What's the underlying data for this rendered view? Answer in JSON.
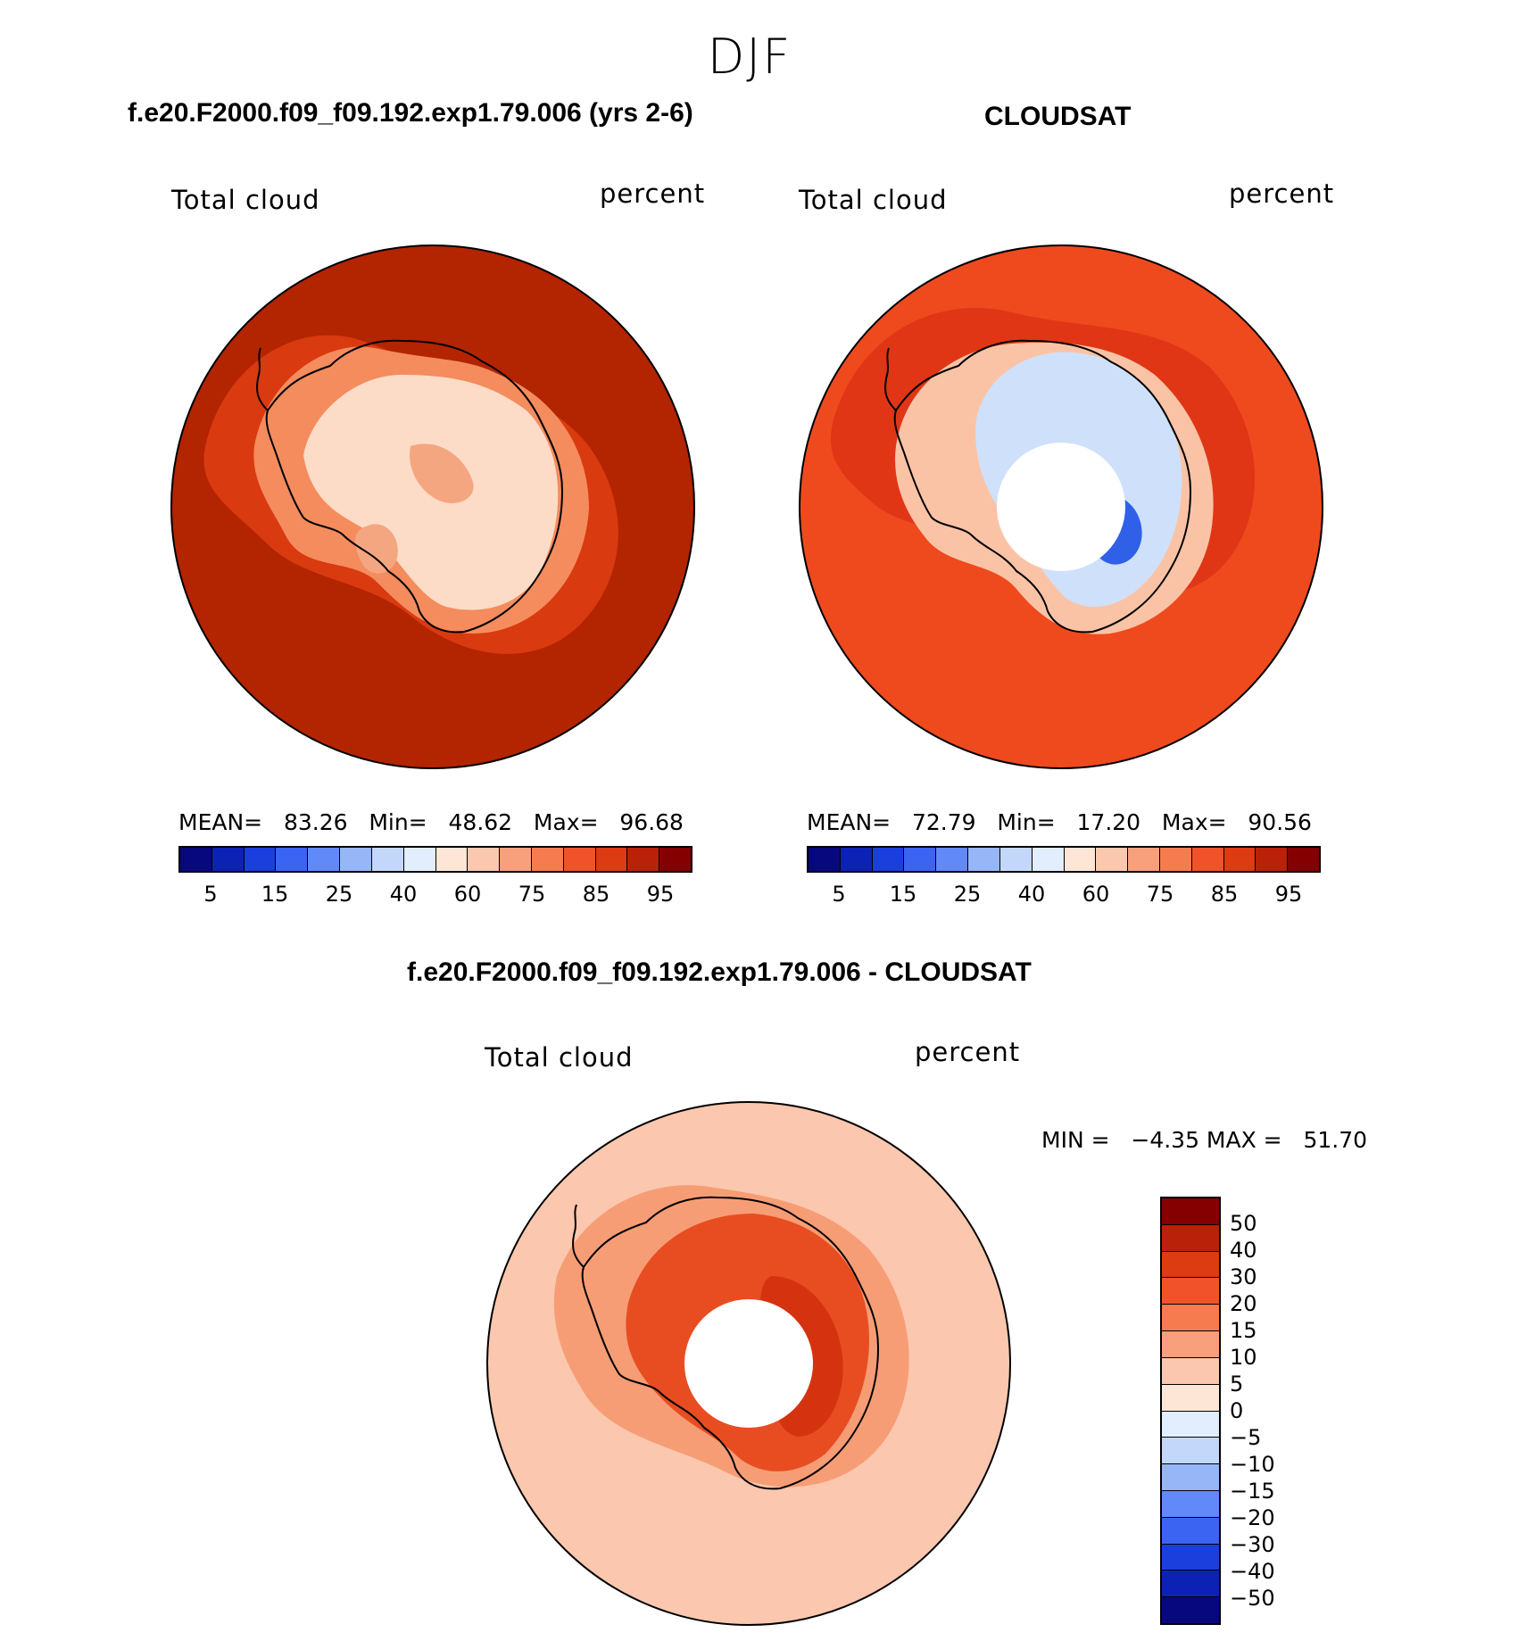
{
  "season": "DJF",
  "panels": {
    "model": {
      "title": "f.e20.F2000.f09_f09.192.exp1.79.006 (yrs 2-6)",
      "variable": "Total cloud",
      "units": "percent",
      "stats": "MEAN=   83.26   Min=   48.62   Max=   96.68",
      "region": "Antarctica",
      "colors": {
        "outer": "#b32400",
        "mid": "#d93a10",
        "coast": "#f58c5e",
        "inland": "#fcdcc6",
        "inland2": "#f4a680"
      }
    },
    "obs": {
      "title": "CLOUDSAT",
      "variable": "Total cloud",
      "units": "percent",
      "stats": "MEAN=   72.79   Min=   17.20   Max=   90.56",
      "colors": {
        "outer": "#ef4a1e",
        "mid": "#e03616",
        "coast": "#fbc3a6",
        "inland": "#cfe0fb",
        "deep": "#3060e8"
      }
    },
    "diff": {
      "title": "f.e20.F2000.f09_f09.192.exp1.79.006 - CLOUDSAT",
      "variable": "Total cloud",
      "units": "percent",
      "minmax": "MIN =   −4.35 MAX =   51.70",
      "colors": {
        "outer": "#fbc7ae",
        "mid": "#f79d75",
        "inland": "#e84d22",
        "inland2": "#d5330f"
      }
    }
  },
  "colorbar_abs": {
    "colors": [
      "#08087e",
      "#0c22b4",
      "#1b3fdc",
      "#3c64f3",
      "#6189f7",
      "#96b6f8",
      "#c3d7fb",
      "#e2edfd",
      "#fde6d6",
      "#fbc8af",
      "#f8a07b",
      "#f67c4f",
      "#f2522a",
      "#dd3b12",
      "#b92208",
      "#850000"
    ],
    "tick_labels": [
      "5",
      "15",
      "25",
      "40",
      "60",
      "75",
      "85",
      "95"
    ]
  },
  "colorbar_diff": {
    "colors": [
      "#850000",
      "#b92208",
      "#dd3b12",
      "#f2522a",
      "#f67c4f",
      "#f8a07b",
      "#fbc8af",
      "#fde6d6",
      "#e2edfd",
      "#c3d7fb",
      "#96b6f8",
      "#6189f7",
      "#3c64f3",
      "#1b3fdc",
      "#0c22b4",
      "#08087e"
    ],
    "tick_labels": [
      "50",
      "40",
      "30",
      "20",
      "15",
      "10",
      "5",
      "0",
      "−5",
      "−10",
      "−15",
      "−20",
      "−30",
      "−40",
      "−50"
    ]
  }
}
